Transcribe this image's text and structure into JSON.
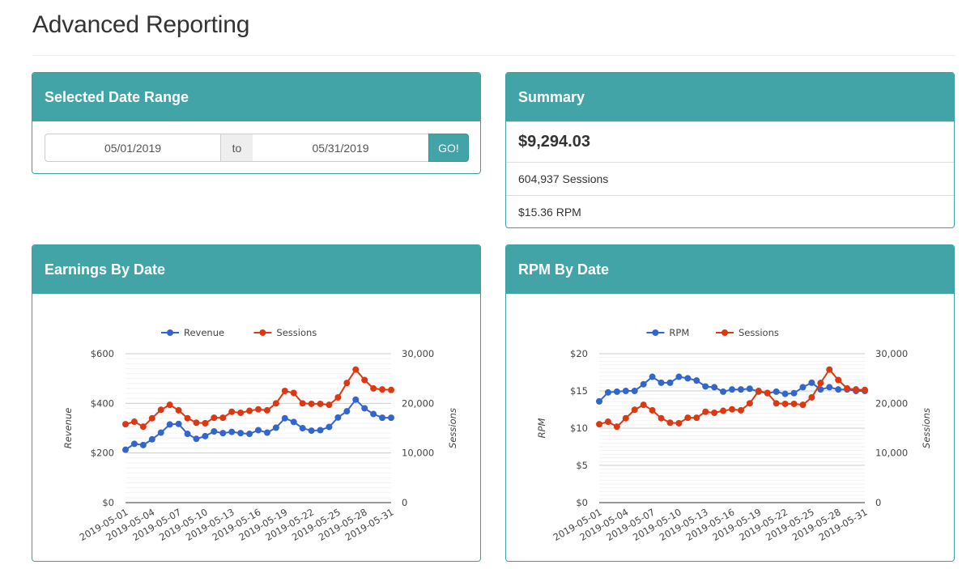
{
  "page": {
    "title": "Advanced Reporting"
  },
  "date_range": {
    "title": "Selected Date Range",
    "start": "05/01/2019",
    "separator": "to",
    "end": "05/31/2019",
    "go_label": "GO!"
  },
  "summary": {
    "title": "Summary",
    "total": "$9,294.03",
    "sessions": "604,937 Sessions",
    "rpm": "$15.36 RPM"
  },
  "earnings": {
    "title": "Earnings By Date"
  },
  "rpm_chart": {
    "title": "RPM By Date"
  },
  "colors": {
    "accent": "#43a4a8",
    "series_blue": "#3366cc",
    "series_red": "#dc3912"
  },
  "chart_data": [
    {
      "type": "line",
      "x": [
        "2019-05-01",
        "2019-05-02",
        "2019-05-03",
        "2019-05-04",
        "2019-05-05",
        "2019-05-06",
        "2019-05-07",
        "2019-05-08",
        "2019-05-09",
        "2019-05-10",
        "2019-05-11",
        "2019-05-12",
        "2019-05-13",
        "2019-05-14",
        "2019-05-15",
        "2019-05-16",
        "2019-05-17",
        "2019-05-18",
        "2019-05-19",
        "2019-05-20",
        "2019-05-21",
        "2019-05-22",
        "2019-05-23",
        "2019-05-24",
        "2019-05-25",
        "2019-05-26",
        "2019-05-27",
        "2019-05-28",
        "2019-05-29",
        "2019-05-30",
        "2019-05-31"
      ],
      "x_ticks": [
        "2019-05-01",
        "2019-05-04",
        "2019-05-07",
        "2019-05-10",
        "2019-05-13",
        "2019-05-16",
        "2019-05-19",
        "2019-05-22",
        "2019-05-25",
        "2019-05-28",
        "2019-05-31"
      ],
      "series": [
        {
          "name": "Revenue",
          "axis": "left",
          "values": [
            213,
            237,
            232,
            255,
            282,
            315,
            317,
            277,
            257,
            268,
            287,
            280,
            285,
            280,
            277,
            292,
            282,
            302,
            340,
            325,
            300,
            290,
            292,
            305,
            343,
            368,
            415,
            380,
            357,
            342,
            342
          ]
        },
        {
          "name": "Sessions",
          "axis": "right",
          "values": [
            15800,
            16300,
            15300,
            17000,
            18700,
            19700,
            18600,
            17000,
            16100,
            16000,
            17100,
            17100,
            18300,
            18100,
            18500,
            18800,
            18600,
            20000,
            22500,
            22100,
            20000,
            19900,
            19900,
            19700,
            21200,
            24100,
            26800,
            24700,
            23000,
            22800,
            22700
          ]
        }
      ],
      "ylabel_left": "Revenue",
      "ylabel_right": "Sessions",
      "y_left_ticks": [
        "$0",
        "$200",
        "$400",
        "$600"
      ],
      "y_right_ticks": [
        "0",
        "10,000",
        "20,000",
        "30,000"
      ],
      "ylim_left": [
        0,
        600
      ],
      "ylim_right": [
        0,
        30000
      ],
      "legend": "top"
    },
    {
      "type": "line",
      "x": [
        "2019-05-01",
        "2019-05-02",
        "2019-05-03",
        "2019-05-04",
        "2019-05-05",
        "2019-05-06",
        "2019-05-07",
        "2019-05-08",
        "2019-05-09",
        "2019-05-10",
        "2019-05-11",
        "2019-05-12",
        "2019-05-13",
        "2019-05-14",
        "2019-05-15",
        "2019-05-16",
        "2019-05-17",
        "2019-05-18",
        "2019-05-19",
        "2019-05-20",
        "2019-05-21",
        "2019-05-22",
        "2019-05-23",
        "2019-05-24",
        "2019-05-25",
        "2019-05-26",
        "2019-05-27",
        "2019-05-28",
        "2019-05-29",
        "2019-05-30",
        "2019-05-31"
      ],
      "x_ticks": [
        "2019-05-01",
        "2019-05-04",
        "2019-05-07",
        "2019-05-10",
        "2019-05-13",
        "2019-05-16",
        "2019-05-19",
        "2019-05-22",
        "2019-05-25",
        "2019-05-28",
        "2019-05-31"
      ],
      "series": [
        {
          "name": "RPM",
          "axis": "left",
          "values": [
            13.6,
            14.8,
            14.9,
            15.0,
            15.0,
            15.9,
            16.9,
            16.1,
            16.1,
            16.9,
            16.7,
            16.4,
            15.6,
            15.5,
            14.9,
            15.2,
            15.2,
            15.3,
            14.9,
            14.7,
            14.9,
            14.6,
            14.7,
            15.5,
            16.1,
            15.2,
            15.5,
            15.2,
            15.2,
            15.0,
            15.0
          ]
        },
        {
          "name": "Sessions",
          "axis": "right",
          "values": [
            15800,
            16300,
            15300,
            17000,
            18700,
            19700,
            18600,
            17000,
            16100,
            16000,
            17100,
            17100,
            18300,
            18100,
            18500,
            18800,
            18600,
            20000,
            22500,
            22100,
            20000,
            19900,
            19900,
            19700,
            21200,
            24100,
            26800,
            24700,
            23000,
            22800,
            22700
          ]
        }
      ],
      "ylabel_left": "RPM",
      "ylabel_right": "Sessions",
      "y_left_ticks": [
        "$0",
        "$5",
        "$10",
        "$15",
        "$20"
      ],
      "y_right_ticks": [
        "0",
        "10,000",
        "20,000",
        "30,000"
      ],
      "ylim_left": [
        0,
        20
      ],
      "ylim_right": [
        0,
        30000
      ],
      "legend": "top"
    }
  ]
}
